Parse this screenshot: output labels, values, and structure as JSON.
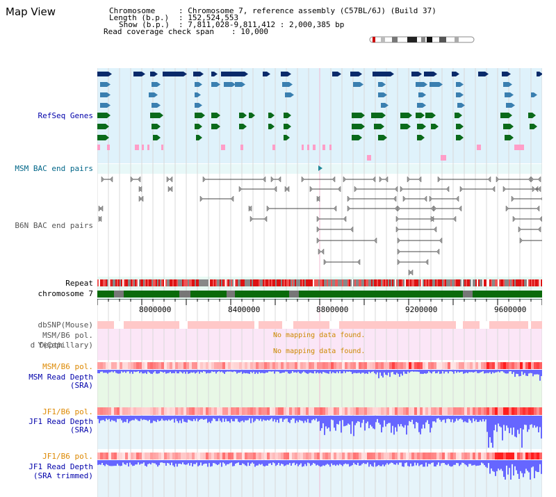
{
  "app": {
    "title": "Map View"
  },
  "info": {
    "chromosome_label": "Chromosome",
    "chromosome_value": ": Chromosome 7, reference assembly (C57BL/6J) (Build 37)",
    "length_label": "Length (b.p.)",
    "length_value": ": 152,524,553",
    "show_label": "Show (b.p.)",
    "show_value": ": 7,811,028-9,811,412 : 2,000,385 bp",
    "span_label": "Read coverage check span",
    "span_value": ": 10,000"
  },
  "tracks": {
    "refseq": "RefSeq Genes",
    "msm_bac": "MSM BAC end pairs",
    "b6n_bac": "B6N BAC end pairs",
    "repeat": "Repeat",
    "chromosome": "chromosome 7",
    "dbsnp": "dbSNP(Mouse)",
    "msm_b6_pol_1": "MSM/B6 pol.",
    "read_depth_cap_line1": "d Depth",
    "read_depth_cap_line2": "Y(Capillary)",
    "msm_b6_pol_2": "MSM/B6 pol.",
    "msm_read_depth": "MSM Read Depth",
    "msm_read_depth_sub": "(SRA)",
    "jf1_b6_pol_1": "JF1/B6 pol.",
    "jf1_read_depth": "JF1 Read Depth",
    "jf1_read_depth_sub": "(SRA)",
    "jf1_b6_pol_2": "JF1/B6 pol.",
    "jf1_read_depth_2": "JF1 Read Depth",
    "jf1_read_depth_2_sub": "(SRA trimmed)"
  },
  "messages": {
    "no_mapping_1": "No mapping data found.",
    "no_mapping_2": "No mapping data found."
  },
  "axis": {
    "ticks": [
      "8000000",
      "8400000",
      "8800000",
      "9200000",
      "9600000"
    ]
  },
  "colors": {
    "gene_navy": "#0a2a6a",
    "gene_steel": "#3a7fb0",
    "gene_green": "#0a6a1a",
    "pink": "#ff9ec8",
    "repeat_red": "#dd1111",
    "chrom_green": "#0a6a0a",
    "label_blue": "#0000aa",
    "label_orange": "#dd8800",
    "depth_blue": "#5555ff"
  }
}
